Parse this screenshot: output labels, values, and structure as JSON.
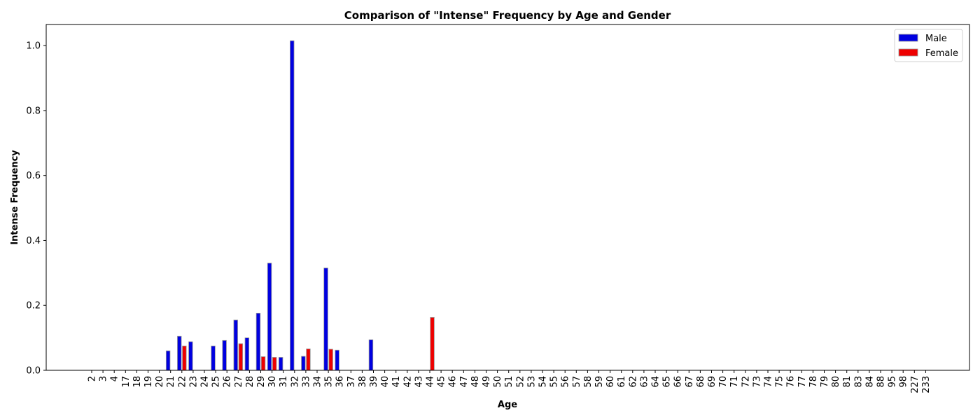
{
  "chart_data": {
    "type": "bar",
    "title": "Comparison of \"Intense\" Frequency by Age and Gender",
    "xlabel": "Age",
    "ylabel": "Intense Frequency",
    "ylim": [
      0,
      1.065
    ],
    "yticks": [
      0.0,
      0.2,
      0.4,
      0.6,
      0.8,
      1.0
    ],
    "ytick_labels": [
      "0.0",
      "0.2",
      "0.4",
      "0.6",
      "0.8",
      "1.0"
    ],
    "grid": false,
    "legend_position": "top-right",
    "categories": [
      "2",
      "3",
      "4",
      "17",
      "18",
      "19",
      "20",
      "21",
      "22",
      "23",
      "24",
      "25",
      "26",
      "27",
      "28",
      "29",
      "30",
      "31",
      "32",
      "33",
      "34",
      "35",
      "36",
      "37",
      "38",
      "39",
      "40",
      "41",
      "42",
      "43",
      "44",
      "45",
      "46",
      "47",
      "48",
      "49",
      "50",
      "51",
      "52",
      "53",
      "54",
      "55",
      "56",
      "57",
      "58",
      "59",
      "60",
      "61",
      "62",
      "63",
      "64",
      "65",
      "66",
      "67",
      "68",
      "69",
      "70",
      "71",
      "72",
      "73",
      "74",
      "75",
      "76",
      "77",
      "78",
      "79",
      "80",
      "81",
      "83",
      "84",
      "88",
      "95",
      "98",
      "227",
      "233"
    ],
    "series": [
      {
        "name": "Male",
        "color": "#0000e0",
        "values": [
          0,
          0,
          0,
          0,
          0,
          0,
          0,
          0.06,
          0.105,
          0.088,
          0,
          0.075,
          0.092,
          0.155,
          0.1,
          0.176,
          0.33,
          0.04,
          1.015,
          0.043,
          0,
          0.315,
          0.062,
          0,
          0,
          0.094,
          0,
          0,
          0,
          0,
          0,
          0,
          0,
          0,
          0,
          0,
          0,
          0,
          0,
          0,
          0,
          0,
          0,
          0,
          0,
          0,
          0,
          0,
          0,
          0,
          0,
          0,
          0,
          0,
          0,
          0,
          0,
          0,
          0,
          0,
          0,
          0,
          0,
          0,
          0,
          0,
          0,
          0,
          0,
          0,
          0,
          0,
          0,
          0,
          0
        ]
      },
      {
        "name": "Female",
        "color": "#ee0000",
        "values": [
          0,
          0,
          0,
          0,
          0,
          0,
          0,
          0,
          0.075,
          0,
          0,
          0,
          0,
          0.082,
          0,
          0.042,
          0.04,
          0,
          0,
          0.066,
          0,
          0.065,
          0,
          0,
          0,
          0,
          0,
          0,
          0,
          0,
          0.163,
          0,
          0,
          0,
          0,
          0,
          0,
          0,
          0,
          0,
          0,
          0,
          0,
          0,
          0,
          0,
          0,
          0,
          0,
          0,
          0,
          0,
          0,
          0,
          0,
          0,
          0,
          0,
          0,
          0,
          0,
          0,
          0,
          0,
          0,
          0,
          0,
          0,
          0,
          0,
          0,
          0,
          0,
          0,
          0
        ]
      }
    ]
  }
}
